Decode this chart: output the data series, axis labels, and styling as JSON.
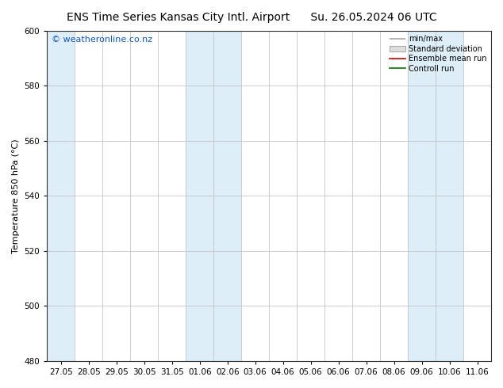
{
  "title": "ENS Time Series Kansas City Intl. Airport",
  "title_right": "Su. 26.05.2024 06 UTC",
  "ylabel": "Temperature 850 hPa (°C)",
  "watermark": "© weatheronline.co.nz",
  "ylim": [
    480,
    600
  ],
  "yticks": [
    480,
    500,
    520,
    540,
    560,
    580,
    600
  ],
  "x_labels": [
    "27.05",
    "28.05",
    "29.05",
    "30.05",
    "31.05",
    "01.06",
    "02.06",
    "03.06",
    "04.06",
    "05.06",
    "06.06",
    "07.06",
    "08.06",
    "09.06",
    "10.06",
    "11.06"
  ],
  "bg_color": "#ffffff",
  "plot_bg_color": "#ffffff",
  "shaded_band_color": "#ddeef8",
  "legend_entries": [
    "min/max",
    "Standard deviation",
    "Ensemble mean run",
    "Controll run"
  ],
  "legend_line_colors": [
    "#aaaaaa",
    "#cccccc",
    "#cc0000",
    "#007700"
  ],
  "shaded_columns": [
    0,
    5,
    6,
    13,
    14
  ],
  "title_fontsize": 10,
  "tick_fontsize": 7.5,
  "ylabel_fontsize": 8,
  "watermark_color": "#1155bb",
  "watermark_fontsize": 8
}
